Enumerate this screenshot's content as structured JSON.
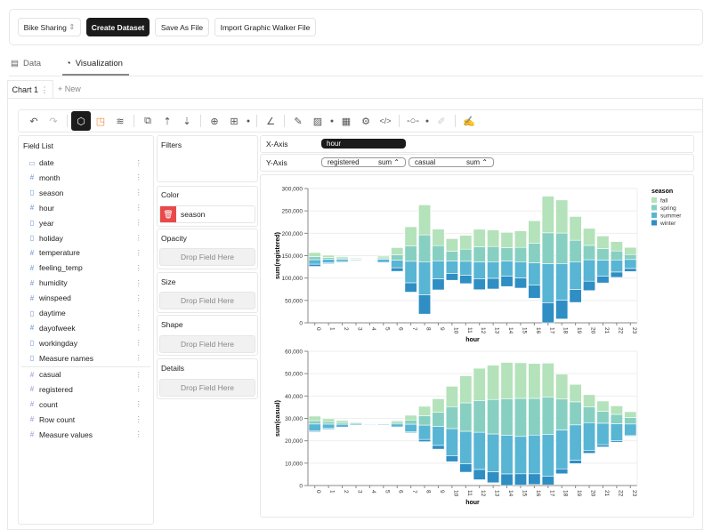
{
  "header": {
    "dataset": "Bike Sharing",
    "dataset_icon": "chevron-updown-icon",
    "create_dataset": "Create Dataset",
    "save_as_file": "Save As File",
    "import_file": "Import Graphic Walker File"
  },
  "tabs": [
    {
      "label": "Data",
      "icon": "database-icon"
    },
    {
      "label": "Visualization",
      "icon": "chart-pie-icon",
      "active": true
    }
  ],
  "chart_tabs": {
    "current": "Chart 1",
    "new": "+ New"
  },
  "field_list": {
    "title": "Field List",
    "dimensions": [
      {
        "name": "date",
        "icon": "calendar-icon"
      },
      {
        "name": "month",
        "icon": "hash-icon"
      },
      {
        "name": "season",
        "icon": "text-file-icon"
      },
      {
        "name": "hour",
        "icon": "hash-icon"
      },
      {
        "name": "year",
        "icon": "text-file-icon"
      },
      {
        "name": "holiday",
        "icon": "text-file-icon"
      },
      {
        "name": "temperature",
        "icon": "hash-icon"
      },
      {
        "name": "feeling_temp",
        "icon": "hash-icon"
      },
      {
        "name": "humidity",
        "icon": "hash-icon"
      },
      {
        "name": "winspeed",
        "icon": "hash-icon"
      },
      {
        "name": "daytime",
        "icon": "text-file-icon"
      },
      {
        "name": "dayofweek",
        "icon": "hash-icon"
      },
      {
        "name": "workingday",
        "icon": "text-file-icon"
      },
      {
        "name": "Measure names",
        "icon": "text-file-icon"
      }
    ],
    "measures": [
      {
        "name": "casual"
      },
      {
        "name": "registered"
      },
      {
        "name": "count"
      },
      {
        "name": "Row count"
      },
      {
        "name": "Measure values"
      }
    ]
  },
  "encodings": {
    "filters": "Filters",
    "color": "Color",
    "color_field": "season",
    "opacity": "Opacity",
    "size": "Size",
    "shape": "Shape",
    "details": "Details",
    "drop_placeholder": "Drop Field Here"
  },
  "axes": {
    "x_label": "X-Axis",
    "x_field": "hour",
    "y_label": "Y-Axis",
    "y_fields": [
      {
        "field": "registered",
        "agg": "sum ⌃"
      },
      {
        "field": "casual",
        "agg": "sum ⌃"
      }
    ]
  },
  "colors": {
    "fall": "#b4e2ba",
    "spring": "#87d0c1",
    "summer": "#58b5d4",
    "winter": "#2f8ec3",
    "accent_red": "#e84a4a"
  },
  "chart_data": [
    {
      "type": "bar",
      "stack": "center",
      "xlabel": "hour",
      "ylabel": "sum(registered)",
      "ylim": [
        0,
        300000
      ],
      "yticks": [
        "0",
        "50,000",
        "100,000",
        "150,000",
        "200,000",
        "250,000",
        "300,000"
      ],
      "categories": [
        "0",
        "1",
        "2",
        "3",
        "4",
        "5",
        "6",
        "7",
        "8",
        "9",
        "10",
        "11",
        "12",
        "13",
        "14",
        "15",
        "16",
        "17",
        "18",
        "19",
        "20",
        "21",
        "22",
        "23"
      ],
      "legend": {
        "title": "season",
        "position": "right",
        "entries": [
          "fall",
          "spring",
          "summer",
          "winter"
        ]
      },
      "series": [
        {
          "name": "winter",
          "values": [
            5000,
            2000,
            2000,
            1000,
            700,
            1000,
            8000,
            21000,
            43000,
            25000,
            15000,
            19000,
            24000,
            24000,
            23000,
            23000,
            29000,
            45000,
            42000,
            29000,
            21000,
            15000,
            12000,
            7000
          ]
        },
        {
          "name": "summer",
          "values": [
            10000,
            8000,
            5000,
            2000,
            800,
            7000,
            17000,
            48000,
            74000,
            40000,
            28000,
            31000,
            38000,
            37000,
            34000,
            36000,
            50000,
            87000,
            82000,
            62000,
            48000,
            36000,
            27000,
            20000
          ]
        },
        {
          "name": "spring",
          "values": [
            7000,
            4000,
            3000,
            1000,
            700,
            3000,
            12000,
            34000,
            60000,
            34000,
            22000,
            27000,
            34000,
            34000,
            30000,
            32000,
            44000,
            69000,
            68000,
            48000,
            32000,
            26000,
            20000,
            11000
          ]
        },
        {
          "name": "fall",
          "values": [
            9000,
            5000,
            3000,
            2000,
            800,
            4000,
            16000,
            43000,
            67000,
            37000,
            28000,
            31000,
            39000,
            37000,
            34000,
            37000,
            50000,
            82000,
            74000,
            53000,
            38000,
            28000,
            21000,
            16000
          ]
        }
      ]
    },
    {
      "type": "bar",
      "stack": "center",
      "xlabel": "hour",
      "ylabel": "sum(casual)",
      "ylim": [
        0,
        60000
      ],
      "yticks": [
        "0",
        "10,000",
        "20,000",
        "30,000",
        "40,000",
        "50,000",
        "60,000"
      ],
      "categories": [
        "0",
        "1",
        "2",
        "3",
        "4",
        "5",
        "6",
        "7",
        "8",
        "9",
        "10",
        "11",
        "12",
        "13",
        "14",
        "15",
        "16",
        "17",
        "18",
        "19",
        "20",
        "21",
        "22",
        "23"
      ],
      "series": [
        {
          "name": "winter",
          "values": [
            500,
            400,
            200,
            200,
            100,
            100,
            200,
            400,
            1000,
            1700,
            2600,
            3800,
            4600,
            4900,
            5200,
            5100,
            4800,
            3800,
            2200,
            1500,
            1200,
            1000,
            600,
            300
          ]
        },
        {
          "name": "summer",
          "values": [
            3000,
            1900,
            1300,
            500,
            300,
            400,
            1300,
            3400,
            6400,
            8500,
            12200,
            14500,
            16600,
            16900,
            17200,
            16700,
            17300,
            18800,
            17400,
            15800,
            12500,
            9600,
            7600,
            5200
          ]
        },
        {
          "name": "spring",
          "values": [
            1500,
            1100,
            800,
            500,
            200,
            300,
            800,
            1900,
            4200,
            6300,
            9800,
            12700,
            14200,
            15400,
            16400,
            17000,
            16400,
            16700,
            13800,
            10300,
            7000,
            5300,
            4200,
            2900
          ]
        },
        {
          "name": "fall",
          "values": [
            2000,
            1300,
            900,
            400,
            200,
            200,
            700,
            2100,
            4200,
            6000,
            9100,
            12100,
            14400,
            15300,
            16200,
            15900,
            15600,
            15100,
            11100,
            7800,
            5500,
            4600,
            3800,
            2600
          ]
        }
      ]
    }
  ]
}
